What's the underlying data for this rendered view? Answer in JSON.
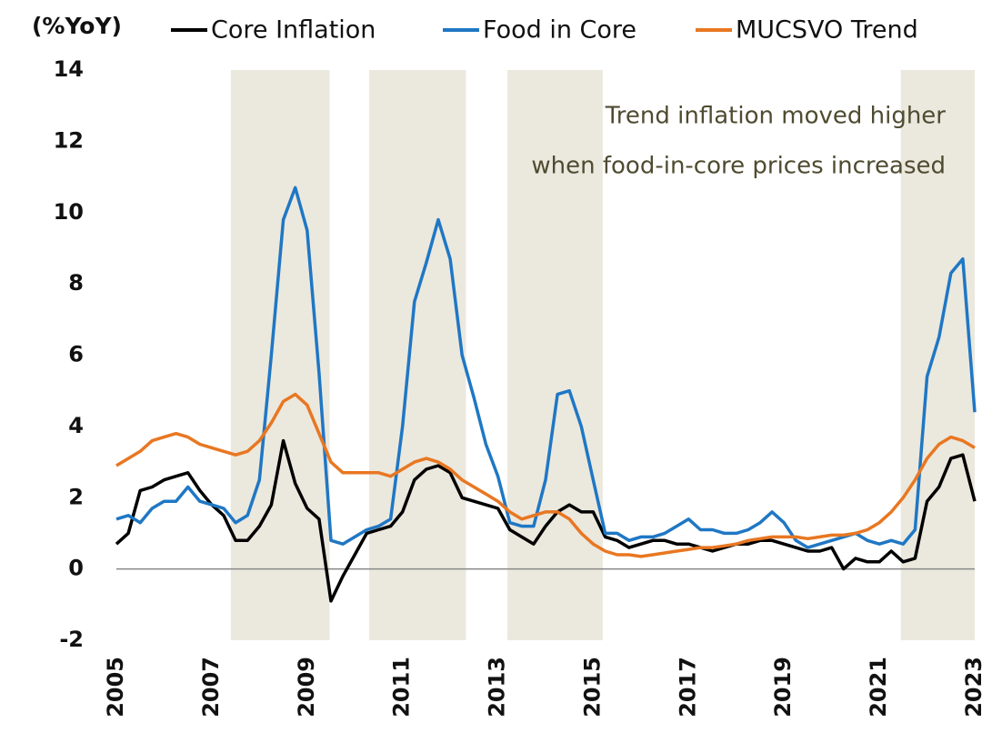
{
  "chart_data": {
    "type": "line",
    "y_axis_label": "(%YoY)",
    "annotation": [
      "Trend inflation moved higher",
      "when food-in-core prices increased"
    ],
    "x": [
      2005,
      2005.25,
      2005.5,
      2005.75,
      2006,
      2006.25,
      2006.5,
      2006.75,
      2007,
      2007.25,
      2007.5,
      2007.75,
      2008,
      2008.25,
      2008.5,
      2008.75,
      2009,
      2009.25,
      2009.5,
      2009.75,
      2010,
      2010.25,
      2010.5,
      2010.75,
      2011,
      2011.25,
      2011.5,
      2011.75,
      2012,
      2012.25,
      2012.5,
      2012.75,
      2013,
      2013.25,
      2013.5,
      2013.75,
      2014,
      2014.25,
      2014.5,
      2014.75,
      2015,
      2015.25,
      2015.5,
      2015.75,
      2016,
      2016.25,
      2016.5,
      2016.75,
      2017,
      2017.25,
      2017.5,
      2017.75,
      2018,
      2018.25,
      2018.5,
      2018.75,
      2019,
      2019.25,
      2019.5,
      2019.75,
      2020,
      2020.25,
      2020.5,
      2020.75,
      2021,
      2021.25,
      2021.5,
      2021.75,
      2022,
      2022.25,
      2022.5,
      2022.75,
      2023
    ],
    "series": [
      {
        "name": "Core Inflation",
        "color": "#000000",
        "values": [
          0.7,
          1.0,
          2.2,
          2.3,
          2.5,
          2.6,
          2.7,
          2.2,
          1.8,
          1.5,
          0.8,
          0.8,
          1.2,
          1.8,
          3.6,
          2.4,
          1.7,
          1.4,
          -0.9,
          -0.2,
          0.4,
          1.0,
          1.1,
          1.2,
          1.6,
          2.5,
          2.8,
          2.9,
          2.7,
          2.0,
          1.9,
          1.8,
          1.7,
          1.1,
          0.9,
          0.7,
          1.2,
          1.6,
          1.8,
          1.6,
          1.6,
          0.9,
          0.8,
          0.6,
          0.7,
          0.8,
          0.8,
          0.7,
          0.7,
          0.6,
          0.5,
          0.6,
          0.7,
          0.7,
          0.8,
          0.8,
          0.7,
          0.6,
          0.5,
          0.5,
          0.6,
          0.0,
          0.3,
          0.2,
          0.2,
          0.5,
          0.2,
          0.3,
          1.9,
          2.3,
          3.1,
          3.2,
          1.9
        ]
      },
      {
        "name": "Food in Core",
        "color": "#1f77c4",
        "values": [
          1.4,
          1.5,
          1.3,
          1.7,
          1.9,
          1.9,
          2.3,
          1.9,
          1.8,
          1.7,
          1.3,
          1.5,
          2.5,
          6.0,
          9.8,
          10.7,
          9.5,
          5.5,
          0.8,
          0.7,
          0.9,
          1.1,
          1.2,
          1.4,
          4.0,
          7.5,
          8.6,
          9.8,
          8.7,
          6.0,
          4.8,
          3.5,
          2.6,
          1.3,
          1.2,
          1.2,
          2.5,
          4.9,
          5.0,
          4.0,
          2.5,
          1.0,
          1.0,
          0.8,
          0.9,
          0.9,
          1.0,
          1.2,
          1.4,
          1.1,
          1.1,
          1.0,
          1.0,
          1.1,
          1.3,
          1.6,
          1.3,
          0.8,
          0.6,
          0.7,
          0.8,
          0.9,
          1.0,
          0.8,
          0.7,
          0.8,
          0.7,
          1.1,
          5.4,
          6.5,
          8.3,
          8.7,
          4.4
        ]
      },
      {
        "name": "MUCSVO Trend",
        "color": "#e87722",
        "values": [
          2.9,
          3.1,
          3.3,
          3.6,
          3.7,
          3.8,
          3.7,
          3.5,
          3.4,
          3.3,
          3.2,
          3.3,
          3.6,
          4.1,
          4.7,
          4.9,
          4.6,
          3.8,
          3.0,
          2.7,
          2.7,
          2.7,
          2.7,
          2.6,
          2.8,
          3.0,
          3.1,
          3.0,
          2.8,
          2.5,
          2.3,
          2.1,
          1.9,
          1.6,
          1.4,
          1.5,
          1.6,
          1.6,
          1.4,
          1.0,
          0.7,
          0.5,
          0.4,
          0.4,
          0.35,
          0.4,
          0.45,
          0.5,
          0.55,
          0.6,
          0.6,
          0.65,
          0.7,
          0.8,
          0.85,
          0.9,
          0.9,
          0.9,
          0.85,
          0.9,
          0.95,
          0.95,
          1.0,
          1.1,
          1.3,
          1.6,
          2.0,
          2.5,
          3.1,
          3.5,
          3.7,
          3.6,
          3.4
        ]
      }
    ],
    "shaded_ranges": [
      [
        2007.4,
        2009.47
      ],
      [
        2010.3,
        2012.33
      ],
      [
        2013.2,
        2015.2
      ],
      [
        2021.45,
        2023
      ]
    ],
    "shade_color": "#ebe8de",
    "xlim": [
      2005,
      2023
    ],
    "xticks": [
      2005,
      2007,
      2009,
      2011,
      2013,
      2015,
      2017,
      2019,
      2021,
      2023
    ],
    "ylim": [
      -2,
      14
    ],
    "yticks": [
      -2,
      0,
      2,
      4,
      6,
      8,
      10,
      12,
      14
    ]
  }
}
